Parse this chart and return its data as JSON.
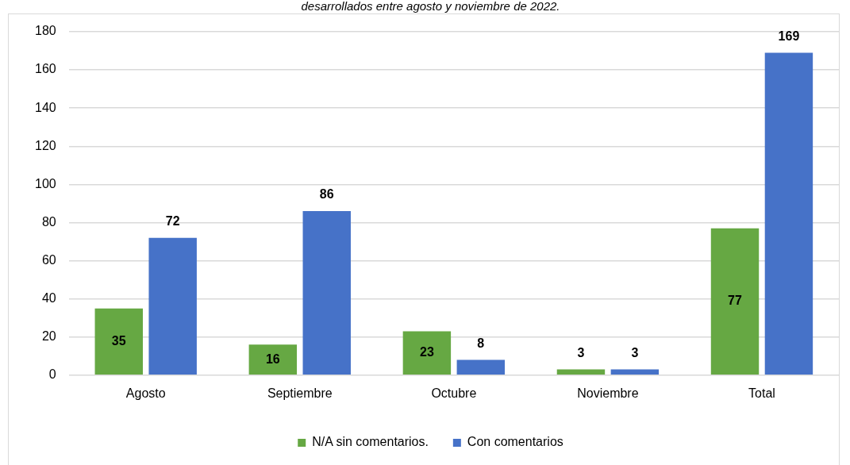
{
  "chart_data": {
    "type": "bar",
    "title": "desarrollados entre agosto y noviembre de 2022.",
    "categories": [
      "Agosto",
      "Septiembre",
      "Octubre",
      "Noviembre",
      "Total"
    ],
    "series": [
      {
        "name": "N/A sin comentarios.",
        "color": "#66a843",
        "values": [
          35,
          16,
          23,
          3,
          77
        ]
      },
      {
        "name": "Con comentarios",
        "color": "#4672c8",
        "values": [
          72,
          86,
          8,
          3,
          169
        ]
      }
    ],
    "ylim": [
      0,
      180
    ],
    "yticks": [
      0,
      20,
      40,
      60,
      80,
      100,
      120,
      140,
      160,
      180
    ],
    "grid": "y",
    "legend": "bottom",
    "data_labels": true
  }
}
